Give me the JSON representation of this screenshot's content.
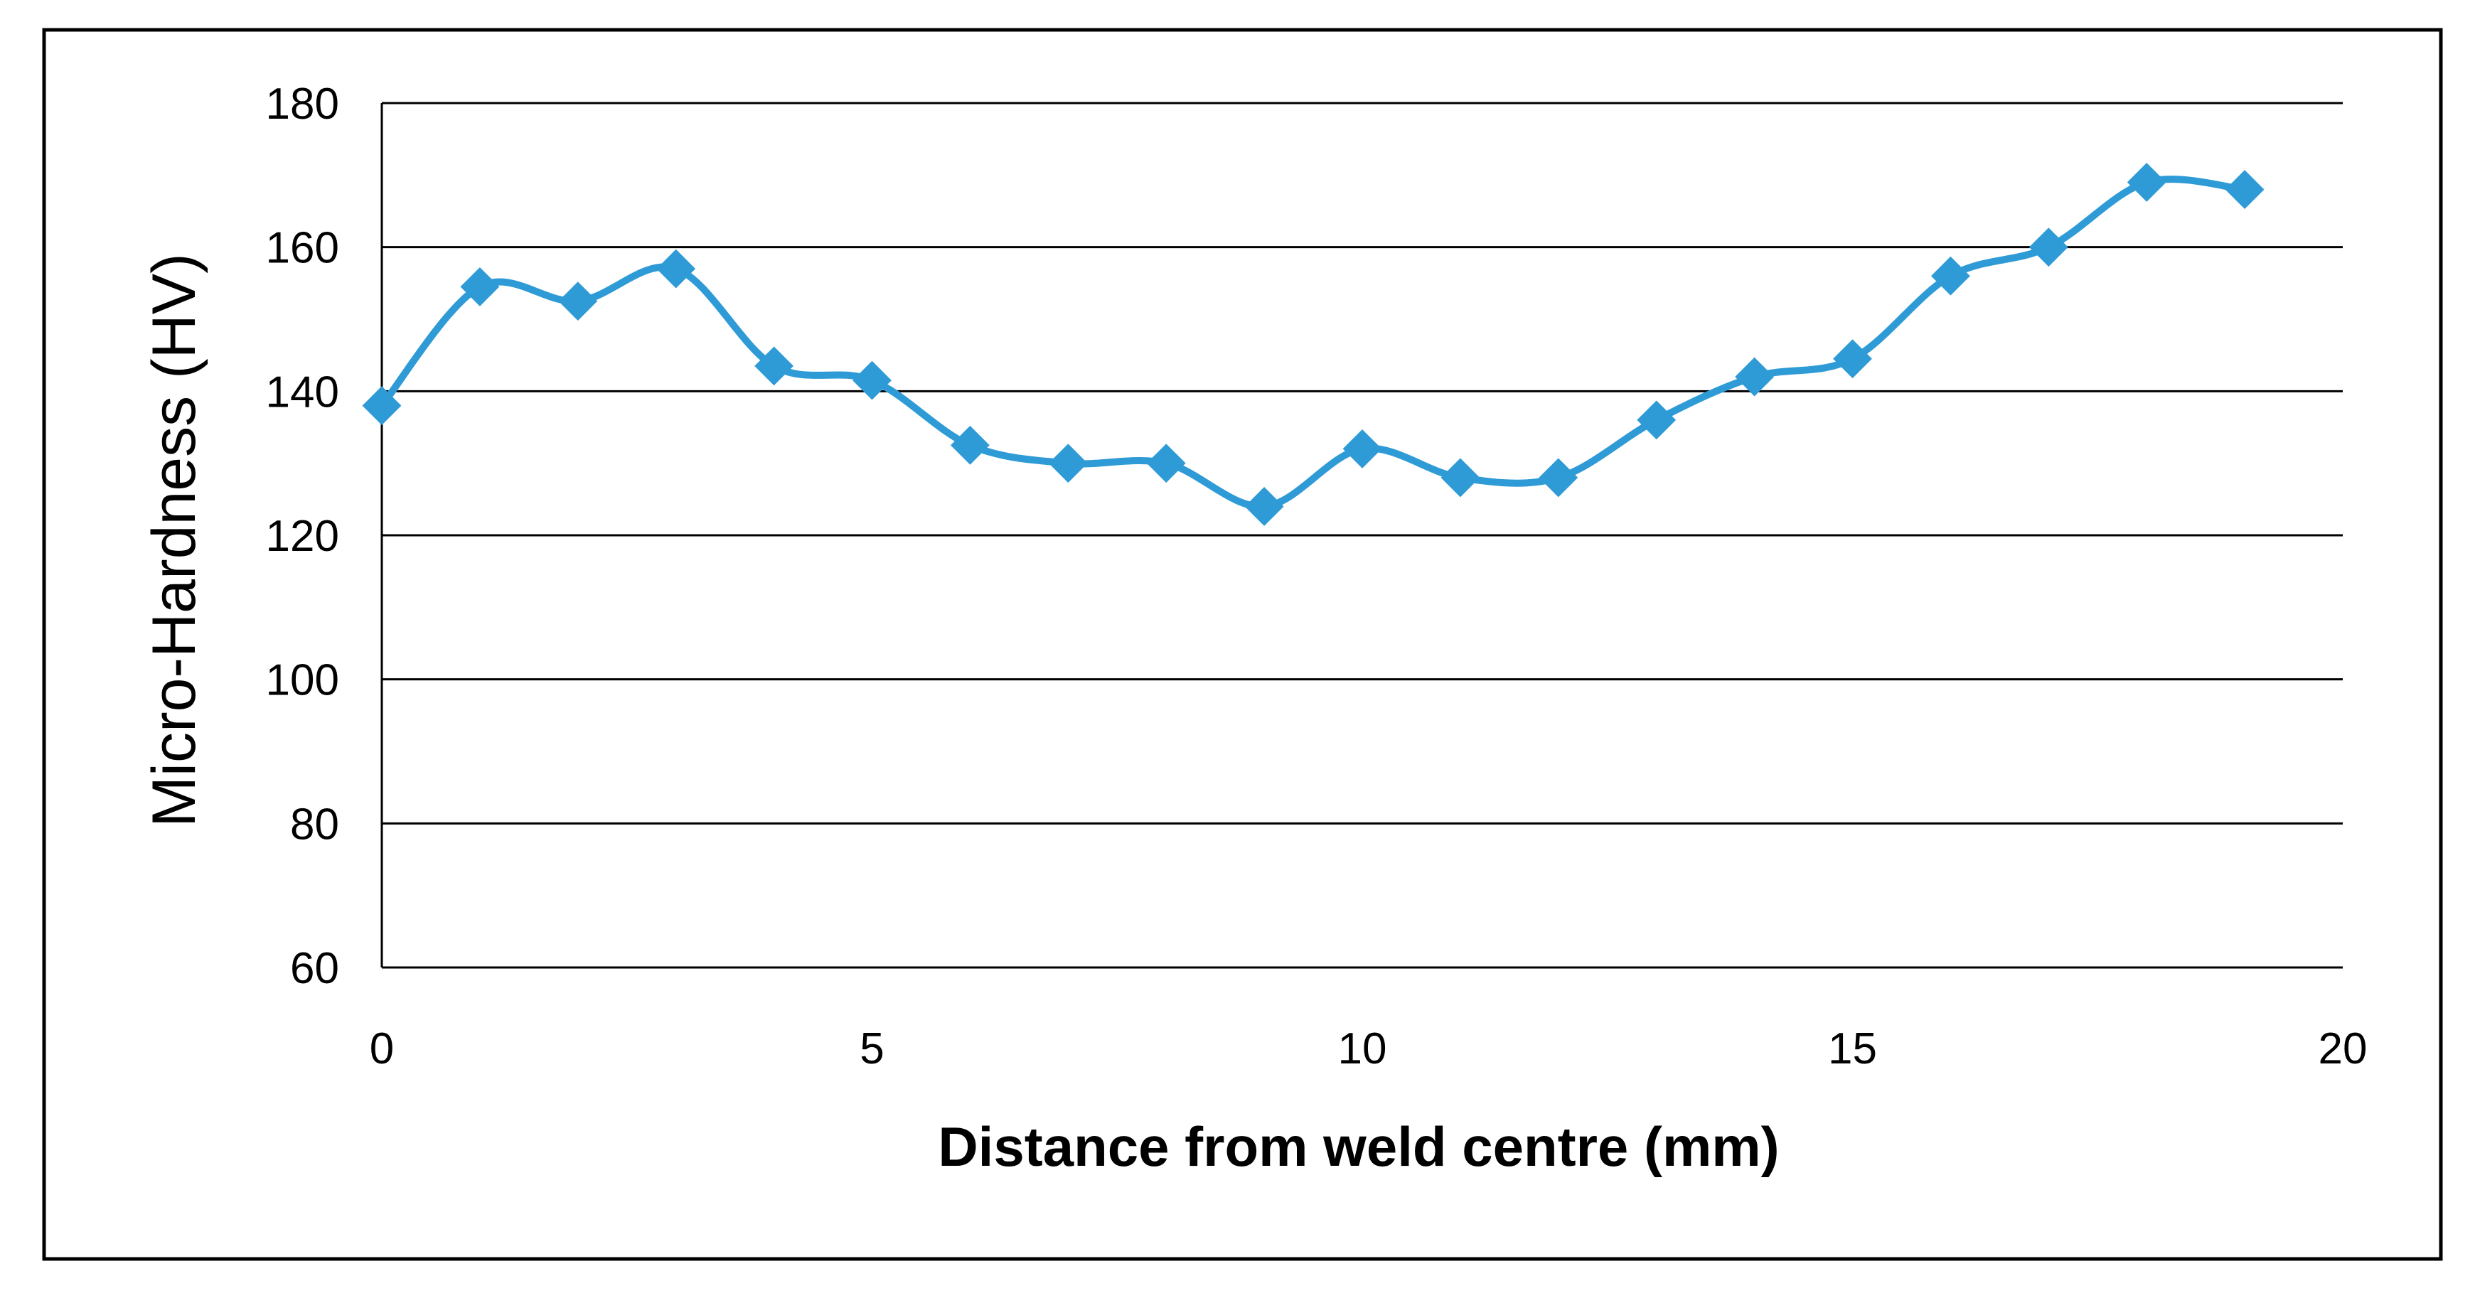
{
  "chart_data": {
    "type": "line",
    "title": "",
    "xlabel": "Distance from weld centre (mm)",
    "ylabel": "Micro-Hardness (HV)",
    "xlim": [
      0,
      20
    ],
    "ylim": [
      60,
      180
    ],
    "x_ticks": [
      0,
      5,
      10,
      15,
      20
    ],
    "y_ticks": [
      60,
      80,
      100,
      120,
      140,
      160,
      180
    ],
    "grid": "horizontal",
    "legend": "none",
    "smooth": true,
    "marker": "diamond",
    "series_color": "#2E9BD6",
    "series": [
      {
        "x": [
          0,
          1,
          2,
          3,
          4,
          5,
          6,
          7,
          8,
          9,
          10,
          11,
          12,
          13,
          14,
          15,
          16,
          17,
          18,
          19
        ],
        "values": [
          138,
          154.5,
          152.5,
          157,
          143.5,
          141.5,
          132.5,
          130,
          130,
          124,
          132,
          128,
          128,
          136,
          142,
          144.5,
          156,
          160,
          169,
          168
        ]
      }
    ]
  }
}
